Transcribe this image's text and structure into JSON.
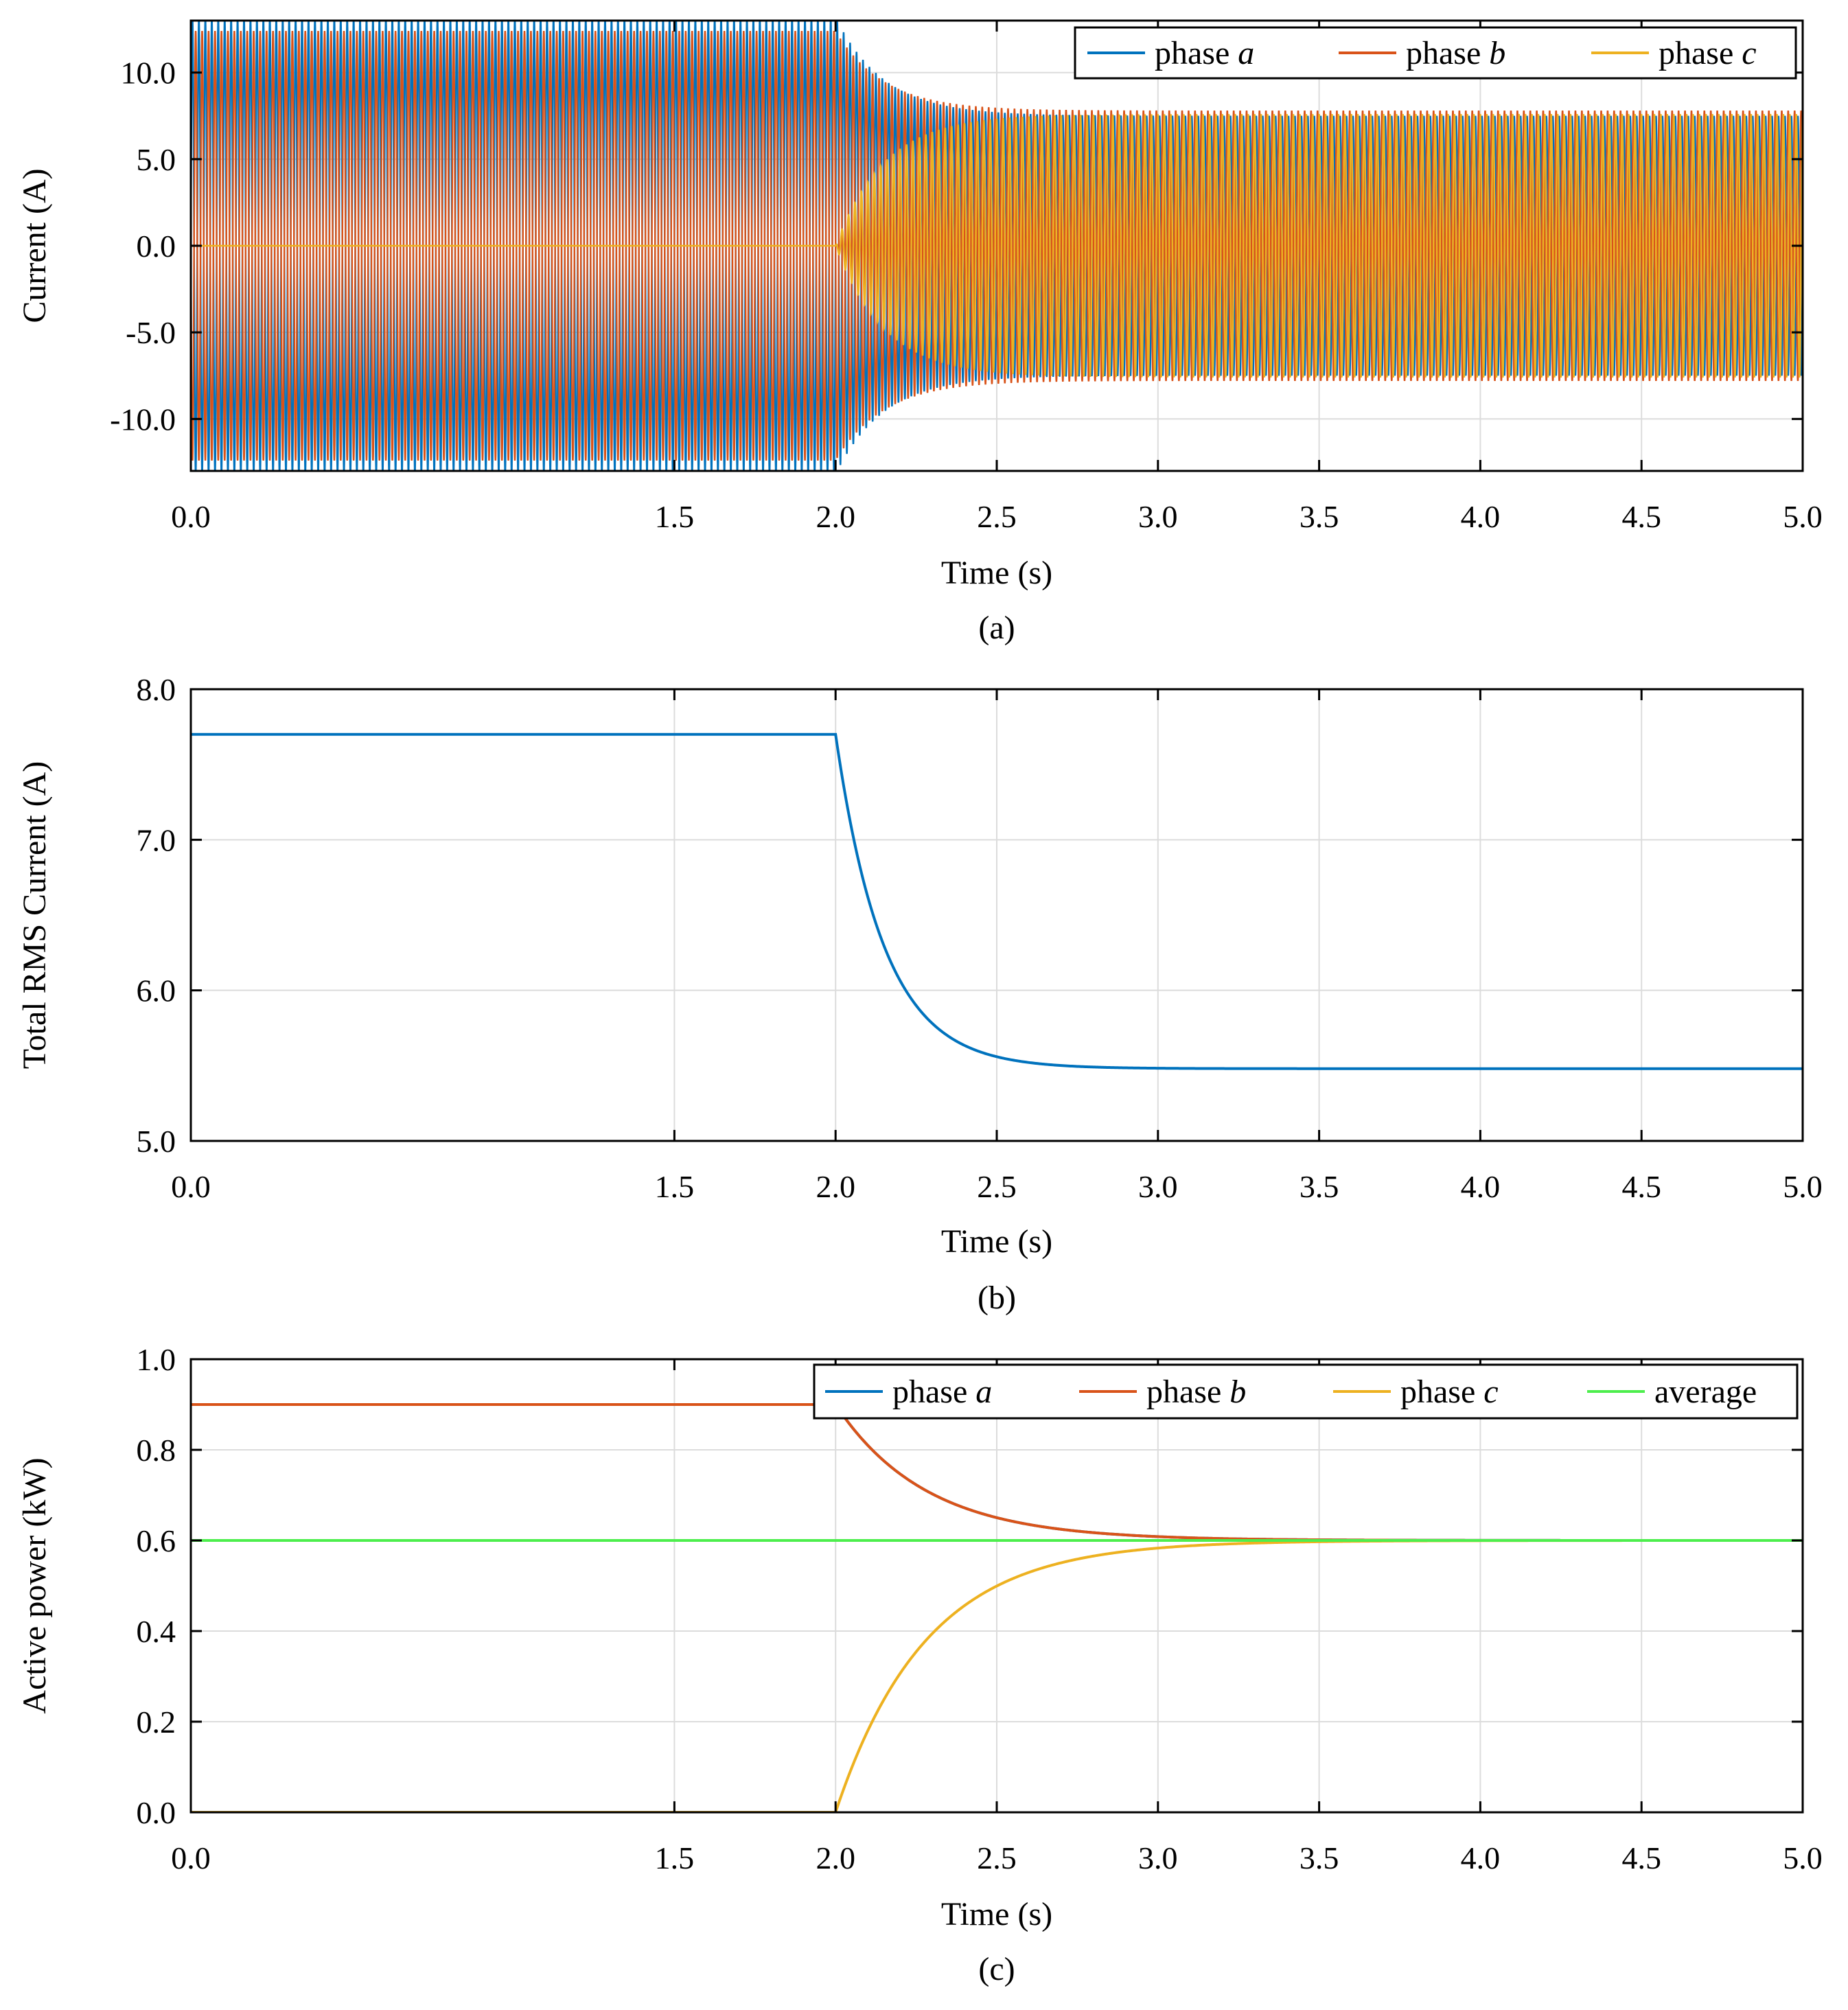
{
  "colors": {
    "phase_a": "#0072BD",
    "phase_b": "#D95319",
    "phase_c": "#EDB120",
    "average": "#4DEE4D"
  },
  "chart_data": [
    {
      "type": "line",
      "caption": "(a)",
      "title": "",
      "xlabel": "Time (s)",
      "ylabel": "Current (A)",
      "xlim": [
        0.0,
        5.0
      ],
      "ylim": [
        -13.0,
        13.0
      ],
      "xticks": [
        "0.0",
        "1.5",
        "2.0",
        "2.5",
        "3.0",
        "3.5",
        "4.0",
        "4.5",
        "5.0"
      ],
      "xtick_values": [
        0.0,
        1.5,
        2.0,
        2.5,
        3.0,
        3.5,
        4.0,
        4.5,
        5.0
      ],
      "yticks": [
        "10.0",
        "5.0",
        "0.0",
        "-5.0",
        "-10.0"
      ],
      "ytick_values": [
        10,
        5,
        0,
        -5,
        -10
      ],
      "grid": true,
      "legend_position": "top-right",
      "event_time": 2.0,
      "time_constant": 0.15,
      "series": [
        {
          "name": "phase ",
          "name_italic": "a",
          "color_key": "phase_a",
          "amp_before": 13.2,
          "amp_after": 7.5,
          "phase_deg": 0
        },
        {
          "name": "phase ",
          "name_italic": "b",
          "color_key": "phase_b",
          "amp_before": 12.4,
          "amp_after": 7.8,
          "phase_deg": 180
        },
        {
          "name": "phase ",
          "name_italic": "c",
          "color_key": "phase_c",
          "amp_before": 0.0,
          "amp_after": 7.6,
          "phase_deg": 90
        }
      ]
    },
    {
      "type": "line",
      "caption": "(b)",
      "title": "",
      "xlabel": "Time (s)",
      "ylabel": "Total RMS Current (A)",
      "xlim": [
        0.0,
        5.0
      ],
      "ylim": [
        5.0,
        8.0
      ],
      "xticks": [
        "0.0",
        "1.5",
        "2.0",
        "2.5",
        "3.0",
        "3.5",
        "4.0",
        "4.5",
        "5.0"
      ],
      "xtick_values": [
        0.0,
        1.5,
        2.0,
        2.5,
        3.0,
        3.5,
        4.0,
        4.5,
        5.0
      ],
      "yticks": [
        "8.0",
        "7.0",
        "6.0",
        "5.0"
      ],
      "ytick_values": [
        8,
        7,
        6,
        5
      ],
      "grid": true,
      "event_time": 2.0,
      "time_constant": 0.15,
      "series": [
        {
          "name": "Total RMS",
          "color_key": "phase_a",
          "before": 7.7,
          "after": 5.48
        }
      ]
    },
    {
      "type": "line",
      "caption": "(c)",
      "title": "",
      "xlabel": "Time (s)",
      "ylabel": "Active power (kW)",
      "xlim": [
        0.0,
        5.0
      ],
      "ylim": [
        0.0,
        1.0
      ],
      "xticks": [
        "0.0",
        "1.5",
        "2.0",
        "2.5",
        "3.0",
        "3.5",
        "4.0",
        "4.5",
        "5.0"
      ],
      "xtick_values": [
        0.0,
        1.5,
        2.0,
        2.5,
        3.0,
        3.5,
        4.0,
        4.5,
        5.0
      ],
      "yticks": [
        "1.0",
        "0.8",
        "0.6",
        "0.4",
        "0.2",
        "0.0"
      ],
      "ytick_values": [
        1.0,
        0.8,
        0.6,
        0.4,
        0.2,
        0.0
      ],
      "grid": true,
      "legend_position": "top-right",
      "event_time": 2.0,
      "time_constant": 0.28,
      "series": [
        {
          "name": "phase ",
          "name_italic": "a",
          "color_key": "phase_a",
          "before": 0.9,
          "after": 0.6
        },
        {
          "name": "phase ",
          "name_italic": "b",
          "color_key": "phase_b",
          "before": 0.9,
          "after": 0.6
        },
        {
          "name": "phase ",
          "name_italic": "c",
          "color_key": "phase_c",
          "before": 0.0,
          "after": 0.6
        },
        {
          "name": "average",
          "name_italic": "",
          "color_key": "average",
          "before": 0.6,
          "after": 0.6
        }
      ]
    }
  ]
}
